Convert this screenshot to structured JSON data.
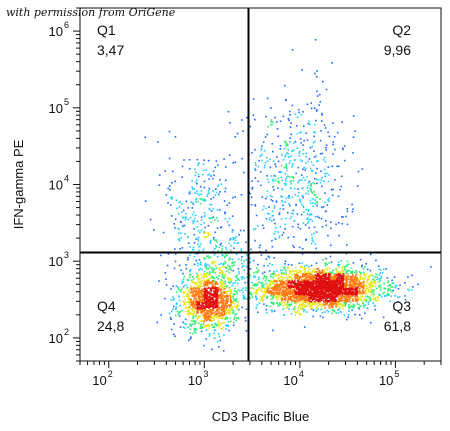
{
  "credit": "with permission from OriGene",
  "chart_data": {
    "type": "scatter",
    "subtype": "flow-cytometry density dot plot with quadrant gates",
    "xlabel": "CD3 Pacific Blue",
    "ylabel": "IFN-gamma PE",
    "x_scale": "log",
    "y_scale": "log",
    "xlim": [
      50,
      300000
    ],
    "ylim": [
      50,
      2000000
    ],
    "x_ticks": [
      {
        "base": "10",
        "exp": "2"
      },
      {
        "base": "10",
        "exp": "3"
      },
      {
        "base": "10",
        "exp": "4"
      },
      {
        "base": "10",
        "exp": "5"
      }
    ],
    "y_ticks": [
      {
        "base": "10",
        "exp": "2"
      },
      {
        "base": "10",
        "exp": "3"
      },
      {
        "base": "10",
        "exp": "4"
      },
      {
        "base": "10",
        "exp": "5"
      },
      {
        "base": "10",
        "exp": "6"
      }
    ],
    "gate_x": 2900,
    "gate_y": 1300,
    "quadrants": [
      {
        "name": "Q1",
        "value": "3,47",
        "corner": "top-left"
      },
      {
        "name": "Q2",
        "value": "9,96",
        "corner": "top-right"
      },
      {
        "name": "Q3",
        "value": "61,8",
        "corner": "bottom-right"
      },
      {
        "name": "Q4",
        "value": "24,8",
        "corner": "bottom-left"
      }
    ],
    "populations": [
      {
        "center": [
          16000,
          450
        ],
        "spread": [
          0.32,
          0.13
        ],
        "weight": 0.56
      },
      {
        "center": [
          1100,
          300
        ],
        "spread": [
          0.15,
          0.18
        ],
        "weight": 0.24
      },
      {
        "center": [
          9000,
          12000
        ],
        "spread": [
          0.28,
          0.55
        ],
        "weight": 0.11
      },
      {
        "center": [
          900,
          4500
        ],
        "spread": [
          0.18,
          0.45
        ],
        "weight": 0.05
      },
      {
        "center": [
          1500,
          1000
        ],
        "spread": [
          0.2,
          0.2
        ],
        "weight": 0.04
      }
    ],
    "density_colors": [
      "#1010c0",
      "#1e6bff",
      "#22d0ff",
      "#30f070",
      "#e8e820",
      "#ff7a10",
      "#e01010"
    ],
    "grid": false,
    "legend": "none"
  }
}
